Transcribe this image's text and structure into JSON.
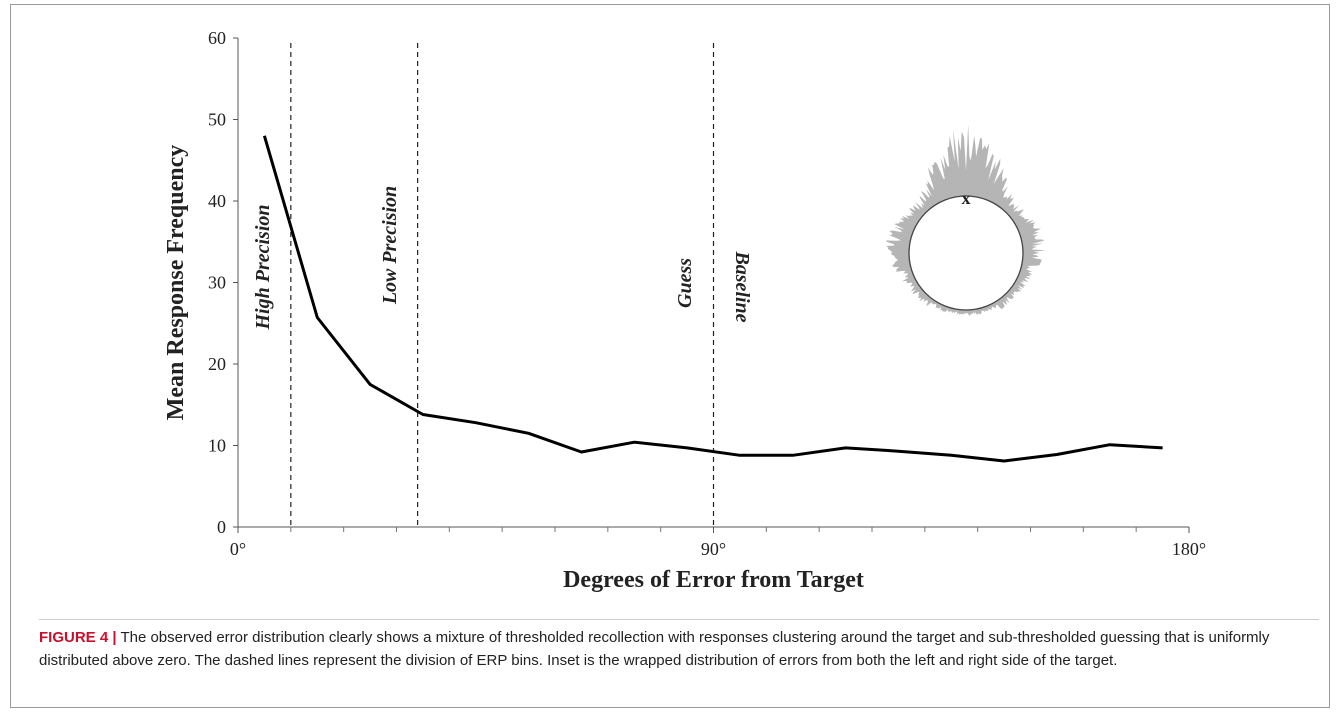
{
  "chart_data": {
    "type": "line",
    "x": [
      5,
      15,
      25,
      35,
      45,
      55,
      65,
      75,
      85,
      95,
      105,
      115,
      125,
      135,
      145,
      155,
      165,
      175
    ],
    "values": [
      48,
      25.7,
      17.5,
      13.8,
      12.8,
      11.5,
      9.2,
      10.4,
      9.7,
      8.8,
      8.8,
      9.7,
      9.3,
      8.8,
      8.1,
      8.9,
      10.1,
      9.7
    ],
    "color": "#000000",
    "xlabel": "Degrees of Error from Target",
    "ylabel": "Mean Response Frequency",
    "xlim": [
      0,
      180
    ],
    "ylim": [
      0,
      60
    ],
    "xticks": [
      {
        "value": 0,
        "label": "0°"
      },
      {
        "value": 90,
        "label": "90°"
      },
      {
        "value": 180,
        "label": "180°"
      }
    ],
    "xminorticks": [
      10,
      20,
      30,
      40,
      50,
      60,
      70,
      80,
      100,
      110,
      120,
      130,
      140,
      150,
      160,
      170
    ],
    "yticks": [
      0,
      10,
      20,
      30,
      40,
      50,
      60
    ],
    "vlines": [
      10,
      34,
      90
    ],
    "annotations": [
      "High Precision",
      "Low Precision",
      "Guess",
      "Baseline"
    ],
    "inset_marker": "x"
  },
  "caption": {
    "label": "FIGURE 4 |",
    "text": "The observed error distribution clearly shows a mixture of thresholded recollection with responses clustering around the target and sub-thresholded guessing that is uniformly distributed above zero. The dashed lines represent the division of ERP bins. Inset is the wrapped distribution of errors from both the left and right side of the target."
  }
}
